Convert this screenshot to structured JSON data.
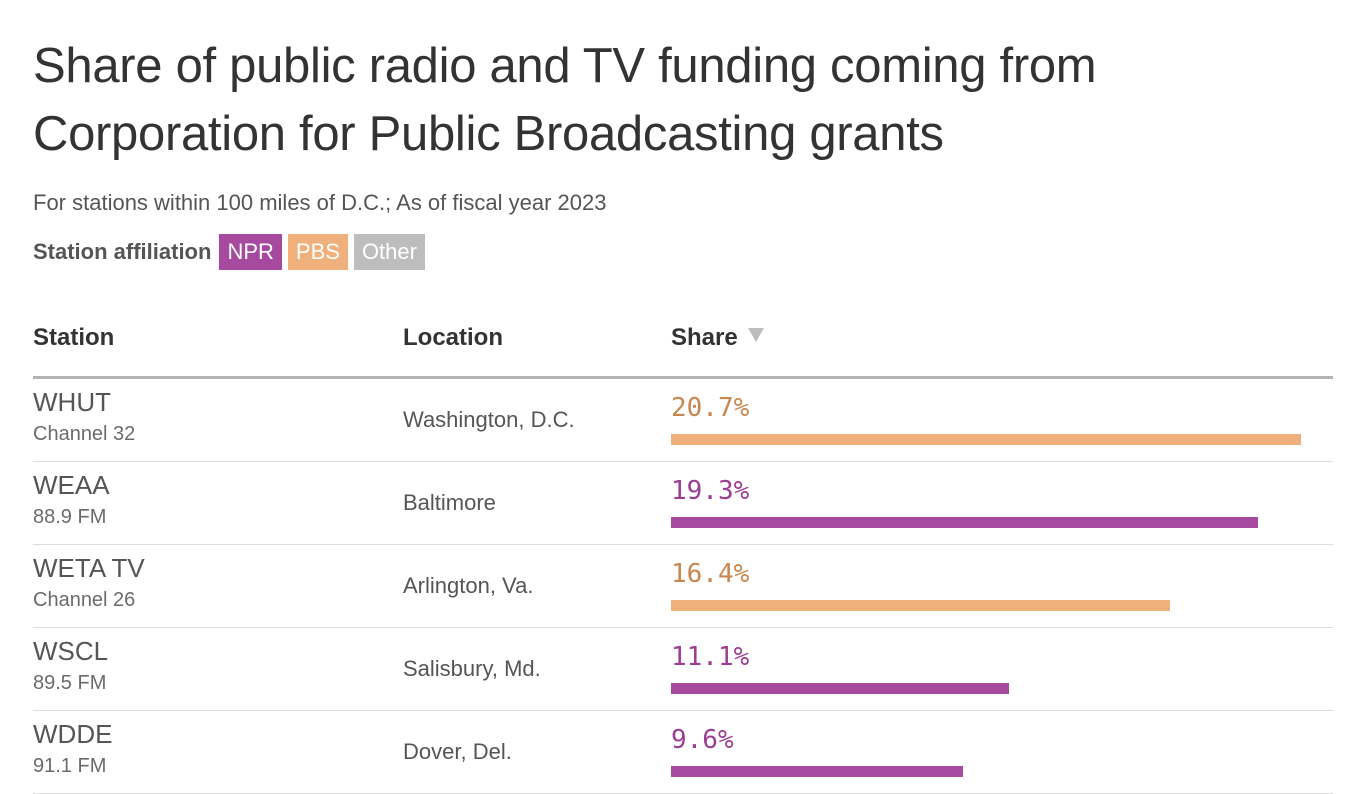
{
  "title": "Share of public radio and TV funding coming from Corporation for Public Broadcasting grants",
  "subtitle": "For stations within 100 miles of D.C.; As of fiscal year 2023",
  "legend": {
    "label": "Station affiliation",
    "items": [
      {
        "label": "NPR",
        "color": "#a54a9e"
      },
      {
        "label": "PBS",
        "color": "#efb07b"
      },
      {
        "label": "Other",
        "color": "#bdbdbd"
      }
    ]
  },
  "columns": {
    "station": "Station",
    "location": "Location",
    "share": "Share"
  },
  "colors": {
    "NPR": "#a54a9e",
    "PBS": "#efb07b",
    "NPR_text": "#9c3d93",
    "PBS_text": "#c9874f"
  },
  "chart_data": {
    "type": "bar",
    "title": "Share of public radio and TV funding coming from Corporation for Public Broadcasting grants",
    "subtitle": "For stations within 100 miles of D.C.; As of fiscal year 2023",
    "categories": [
      "WHUT",
      "WEAA",
      "WETA TV",
      "WSCL",
      "WDDE"
    ],
    "values": [
      20.7,
      19.3,
      16.4,
      11.1,
      9.6
    ],
    "max_value": 20.7,
    "rows": [
      {
        "station": "WHUT",
        "sub": "Channel 32",
        "location": "Washington, D.C.",
        "share": 20.7,
        "label": "20.7%",
        "affiliation": "PBS"
      },
      {
        "station": "WEAA",
        "sub": "88.9 FM",
        "location": "Baltimore",
        "share": 19.3,
        "label": "19.3%",
        "affiliation": "NPR"
      },
      {
        "station": "WETA TV",
        "sub": "Channel 26",
        "location": "Arlington, Va.",
        "share": 16.4,
        "label": "16.4%",
        "affiliation": "PBS"
      },
      {
        "station": "WSCL",
        "sub": "89.5 FM",
        "location": "Salisbury, Md.",
        "share": 11.1,
        "label": "11.1%",
        "affiliation": "NPR"
      },
      {
        "station": "WDDE",
        "sub": "91.1 FM",
        "location": "Dover, Del.",
        "share": 9.6,
        "label": "9.6%",
        "affiliation": "NPR"
      }
    ]
  }
}
